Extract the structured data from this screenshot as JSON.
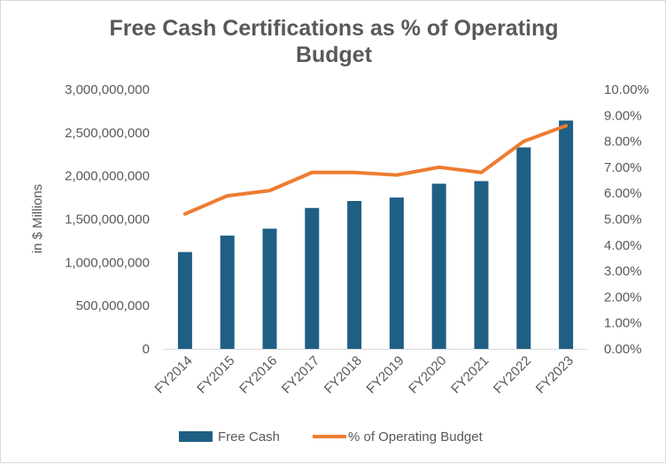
{
  "chart_data": {
    "type": "bar+line",
    "title": "Free Cash Certifications as % of Operating Budget",
    "categories": [
      "FY2014",
      "FY2015",
      "FY2016",
      "FY2017",
      "FY2018",
      "FY2019",
      "FY2020",
      "FY2021",
      "FY2022",
      "FY2023"
    ],
    "series": [
      {
        "name": "Free Cash",
        "type": "bar",
        "axis": "left",
        "color": "#1f5f84",
        "values": [
          1120000000,
          1310000000,
          1390000000,
          1630000000,
          1710000000,
          1750000000,
          1910000000,
          1940000000,
          2330000000,
          2640000000
        ]
      },
      {
        "name": "% of Operating Budget",
        "type": "line",
        "axis": "right",
        "color": "#ed7d31",
        "values": [
          0.052,
          0.059,
          0.061,
          0.068,
          0.068,
          0.067,
          0.07,
          0.068,
          0.08,
          0.086
        ]
      }
    ],
    "ylabel": "in $ Millions",
    "ylim": [
      0,
      3000000000
    ],
    "y_ticks": [
      "0",
      "500,000,000",
      "1,000,000,000",
      "1,500,000,000",
      "2,000,000,000",
      "2,500,000,000",
      "3,000,000,000"
    ],
    "y2lim": [
      0,
      0.1
    ],
    "y2_ticks": [
      "0.00%",
      "1.00%",
      "2.00%",
      "3.00%",
      "4.00%",
      "5.00%",
      "6.00%",
      "7.00%",
      "8.00%",
      "9.00%",
      "10.00%"
    ],
    "legend_position": "bottom",
    "grid": false
  }
}
